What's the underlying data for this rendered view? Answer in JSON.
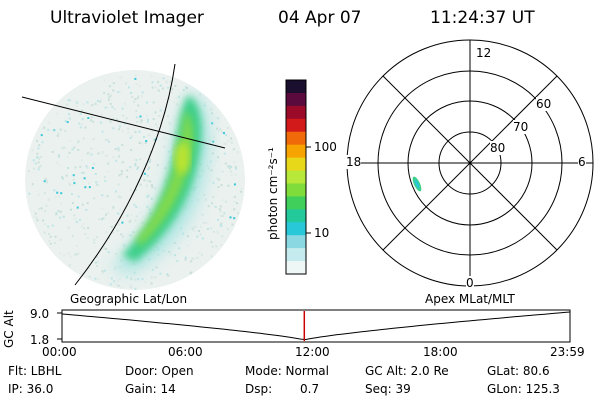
{
  "header": {
    "title": "Ultraviolet Imager",
    "date": "04 Apr 07",
    "time": "11:24:37 UT"
  },
  "colorbar": {
    "label": "photon cm⁻²s⁻¹",
    "ticks": [
      "100",
      "10"
    ],
    "colors": [
      "#1a0f2e",
      "#5a0a3c",
      "#9b0a28",
      "#d31a1a",
      "#f06a0a",
      "#f7a400",
      "#e7d81a",
      "#b8e83a",
      "#7fdc3a",
      "#3fcf5a",
      "#22c99a",
      "#28c8d8",
      "#8ad8e2",
      "#c6ebee",
      "#eef6f6"
    ]
  },
  "polar_plot": {
    "hour_labels": {
      "top": "12",
      "left": "18",
      "right": "6",
      "bottom": "0"
    },
    "lat_labels": [
      "60",
      "70",
      "80"
    ]
  },
  "map_caption_left": "Geographic Lat/Lon",
  "map_caption_right": "Apex MLat/MLT",
  "altitude_plot": {
    "axis_label": "GC Alt",
    "y_ticks": [
      "9.0",
      "1.8"
    ],
    "x_ticks": [
      "00:00",
      "06:00",
      "12:00",
      "18:00",
      "23:59"
    ],
    "marker_color": "#cc0000",
    "current_time_fraction": 0.477
  },
  "info_rows": [
    {
      "flt": "Flt: LBHL",
      "door": "Door: Open",
      "mode": "Mode: Normal",
      "gcalt": "GC Alt: 2.0 Re",
      "glat": "GLat:  80.6"
    },
    {
      "ip": "IP: 36.0",
      "gain": "Gain: 14",
      "dsp_label": "Dsp:",
      "dsp_value": "0.7",
      "seq": "Seq: 39",
      "glon": "GLon: 125.3"
    }
  ],
  "icons": {
    "image": "auroral-image-icon"
  }
}
